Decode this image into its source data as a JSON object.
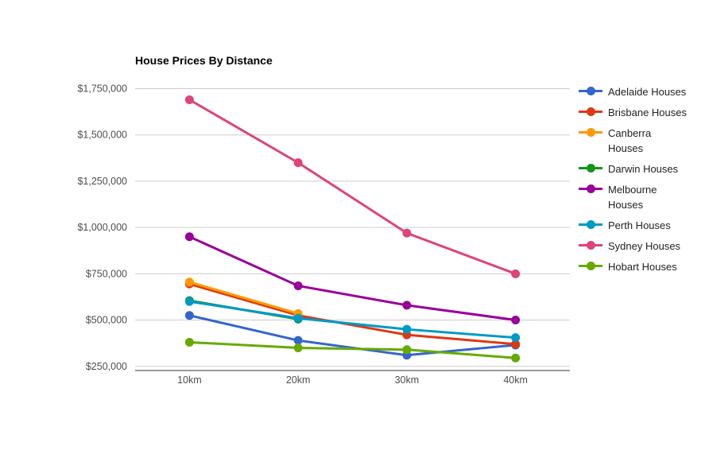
{
  "chart_data": {
    "type": "line",
    "title": "House Prices By Distance",
    "categories": [
      "10km",
      "20km",
      "30km",
      "40km"
    ],
    "series": [
      {
        "name": "Adelaide Houses",
        "color": "#3366cc",
        "values": [
          525000,
          390000,
          310000,
          365000
        ],
        "legend_two_lines": false
      },
      {
        "name": "Brisbane Houses",
        "color": "#dc3912",
        "values": [
          695000,
          525000,
          420000,
          370000
        ],
        "legend_two_lines": false
      },
      {
        "name": "Canberra Houses",
        "color": "#ff9900",
        "values": [
          705000,
          535000,
          null,
          null
        ],
        "legend_two_lines": true
      },
      {
        "name": "Darwin Houses",
        "color": "#109618",
        "values": [
          605000,
          505000,
          null,
          null
        ],
        "legend_two_lines": false
      },
      {
        "name": "Melbourne Houses",
        "color": "#990099",
        "values": [
          950000,
          685000,
          580000,
          500000
        ],
        "legend_two_lines": true
      },
      {
        "name": "Perth Houses",
        "color": "#0099c6",
        "values": [
          600000,
          510000,
          450000,
          405000
        ],
        "legend_two_lines": false
      },
      {
        "name": "Sydney Houses",
        "color": "#dd4477",
        "values": [
          1690000,
          1350000,
          970000,
          750000
        ],
        "legend_two_lines": false
      },
      {
        "name": "Hobart Houses",
        "color": "#66aa00",
        "values": [
          380000,
          350000,
          340000,
          295000
        ],
        "legend_two_lines": false
      }
    ],
    "y_ticks": [
      {
        "label": "$250,000",
        "value": 250000
      },
      {
        "label": "$500,000",
        "value": 500000
      },
      {
        "label": "$750,000",
        "value": 750000
      },
      {
        "label": "$1,000,000",
        "value": 1000000
      },
      {
        "label": "$1,250,000",
        "value": 1250000
      },
      {
        "label": "$1,500,000",
        "value": 1500000
      },
      {
        "label": "$1,750,000",
        "value": 1750000
      }
    ],
    "ylim": [
      250000,
      1750000
    ],
    "grid": true,
    "legend_position": "right"
  },
  "colors": {
    "background": "#ffffff",
    "gridline": "#cccccc",
    "axis_line": "#333333",
    "tick_text": "#4d4d4d",
    "legend_text": "#222222",
    "title_text": "#000000"
  }
}
